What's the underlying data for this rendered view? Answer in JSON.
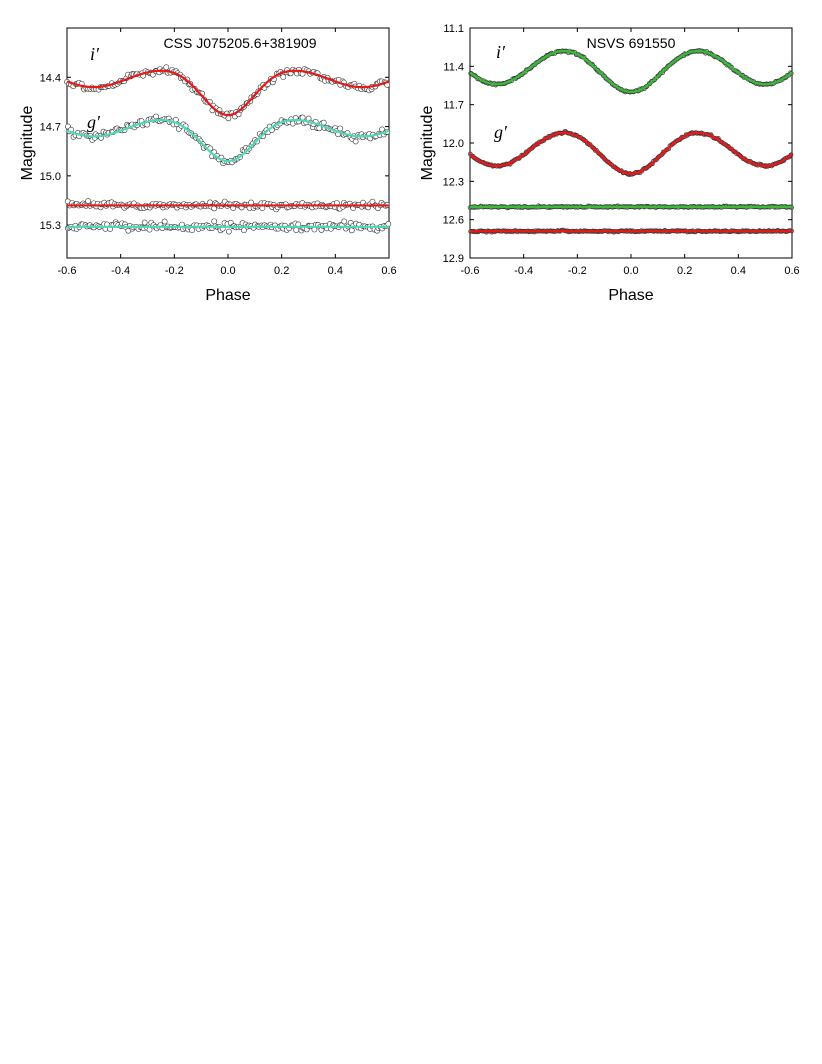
{
  "colors": {
    "red_fit": "#e41a1c",
    "aqua_fit": "#4fd8b8",
    "green_fit": "#3cb83c",
    "marker": "#333333"
  },
  "chart_data": [
    {
      "type": "scatter",
      "title": "CSS J075205.6+381909",
      "xlabel": "Phase",
      "ylabel": "Magnitude",
      "xlim": [
        -0.6,
        0.6
      ],
      "ylim": [
        15.5,
        14.1
      ],
      "y_inverted": true,
      "grid": false,
      "x_ticks": [
        "-0.6",
        "-0.4",
        "-0.2",
        "0.0",
        "0.2",
        "0.4",
        "0.6"
      ],
      "y_ticks": [
        "14.4",
        "14.7",
        "15.0",
        "15.3"
      ],
      "band_labels": [
        "i′",
        "g′"
      ],
      "series": [
        {
          "name": "i′",
          "fit_color": "red_fit",
          "kind": "lightcurve",
          "max_mag": 14.36,
          "min1_mag": 14.63,
          "min2_mag": 14.46,
          "noise": 0.025
        },
        {
          "name": "g′",
          "fit_color": "aqua_fit",
          "kind": "lightcurve",
          "max_mag": 14.66,
          "min1_mag": 14.91,
          "min2_mag": 14.76,
          "noise": 0.025
        },
        {
          "kind": "residual",
          "fit_color": "red_fit",
          "level": 15.18,
          "noise": 0.02
        },
        {
          "kind": "residual",
          "fit_color": "aqua_fit",
          "level": 15.31,
          "noise": 0.025
        }
      ]
    },
    {
      "type": "scatter",
      "title": "NSVS 691550",
      "xlabel": "Phase",
      "ylabel": "Magnitude",
      "xlim": [
        -0.6,
        0.6
      ],
      "ylim": [
        12.9,
        11.1
      ],
      "y_inverted": true,
      "grid": false,
      "x_ticks": [
        "-0.6",
        "-0.4",
        "-0.2",
        "0.0",
        "0.2",
        "0.4",
        "0.6"
      ],
      "y_ticks": [
        "11.1",
        "11.4",
        "11.7",
        "12.0",
        "12.3",
        "12.6",
        "12.9"
      ],
      "band_labels": [
        "i′",
        "g′"
      ],
      "series": [
        {
          "name": "i′",
          "fit_color": "green_fit",
          "kind": "lightcurve",
          "max_mag": 11.28,
          "min1_mag": 11.6,
          "min2_mag": 11.54,
          "noise": 0.008
        },
        {
          "name": "g′",
          "fit_color": "red_fit",
          "kind": "lightcurve",
          "max_mag": 11.92,
          "min1_mag": 12.24,
          "min2_mag": 12.18,
          "noise": 0.008
        },
        {
          "kind": "residual",
          "fit_color": "green_fit",
          "level": 12.5,
          "noise": 0.006
        },
        {
          "kind": "residual",
          "fit_color": "red_fit",
          "level": 12.69,
          "noise": 0.006
        }
      ]
    }
  ]
}
